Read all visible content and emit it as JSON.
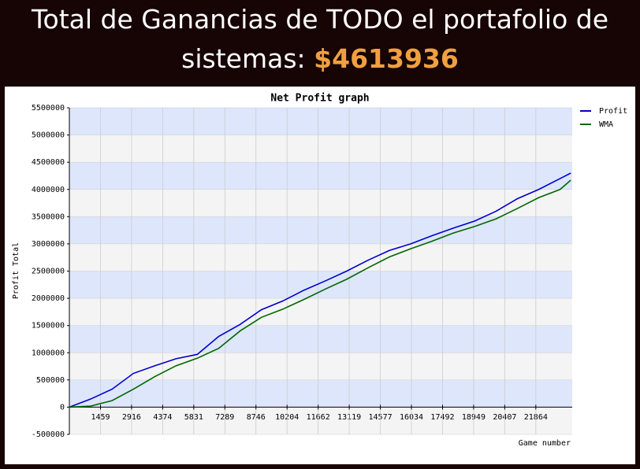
{
  "header": {
    "title": "Total de Ganancias de TODO el portafolio de sistemas:",
    "amount": "$4613936"
  },
  "chart_data": {
    "type": "line",
    "title": "Net Profit graph",
    "x_label": "Game number",
    "y_label": "Profit Total",
    "x": [
      0,
      1000,
      2000,
      3000,
      4000,
      5000,
      6000,
      7000,
      8000,
      9000,
      10000,
      11000,
      12000,
      13000,
      14000,
      15000,
      16000,
      17000,
      18000,
      19000,
      20000,
      21000,
      22000,
      23000,
      23500
    ],
    "series": [
      {
        "name": "Profit",
        "color": "#0000cc",
        "values": [
          0,
          150000,
          330000,
          620000,
          760000,
          890000,
          970000,
          1300000,
          1520000,
          1790000,
          1950000,
          2150000,
          2320000,
          2500000,
          2700000,
          2880000,
          3000000,
          3150000,
          3290000,
          3420000,
          3600000,
          3830000,
          4000000,
          4200000,
          4300000
        ]
      },
      {
        "name": "WMA",
        "color": "#006600",
        "values": [
          0,
          20000,
          120000,
          330000,
          560000,
          760000,
          900000,
          1080000,
          1400000,
          1650000,
          1800000,
          1980000,
          2170000,
          2350000,
          2560000,
          2760000,
          2910000,
          3050000,
          3200000,
          3320000,
          3460000,
          3650000,
          3850000,
          4000000,
          4170000
        ]
      }
    ],
    "xlim": [
      0,
      23570
    ],
    "xticks": [
      1459,
      2916,
      4374,
      5831,
      7289,
      8746,
      10204,
      11662,
      13119,
      14577,
      16034,
      17492,
      18949,
      20407,
      21864
    ],
    "ylim": [
      -500000,
      5500000
    ],
    "yticks": [
      -500000,
      0,
      500000,
      1000000,
      1500000,
      2000000,
      2500000,
      3000000,
      3500000,
      4000000,
      4500000,
      5000000,
      5500000
    ],
    "grid": true,
    "band_colors": [
      "#dde6fb",
      "#f4f4f4"
    ],
    "legend": "right"
  }
}
